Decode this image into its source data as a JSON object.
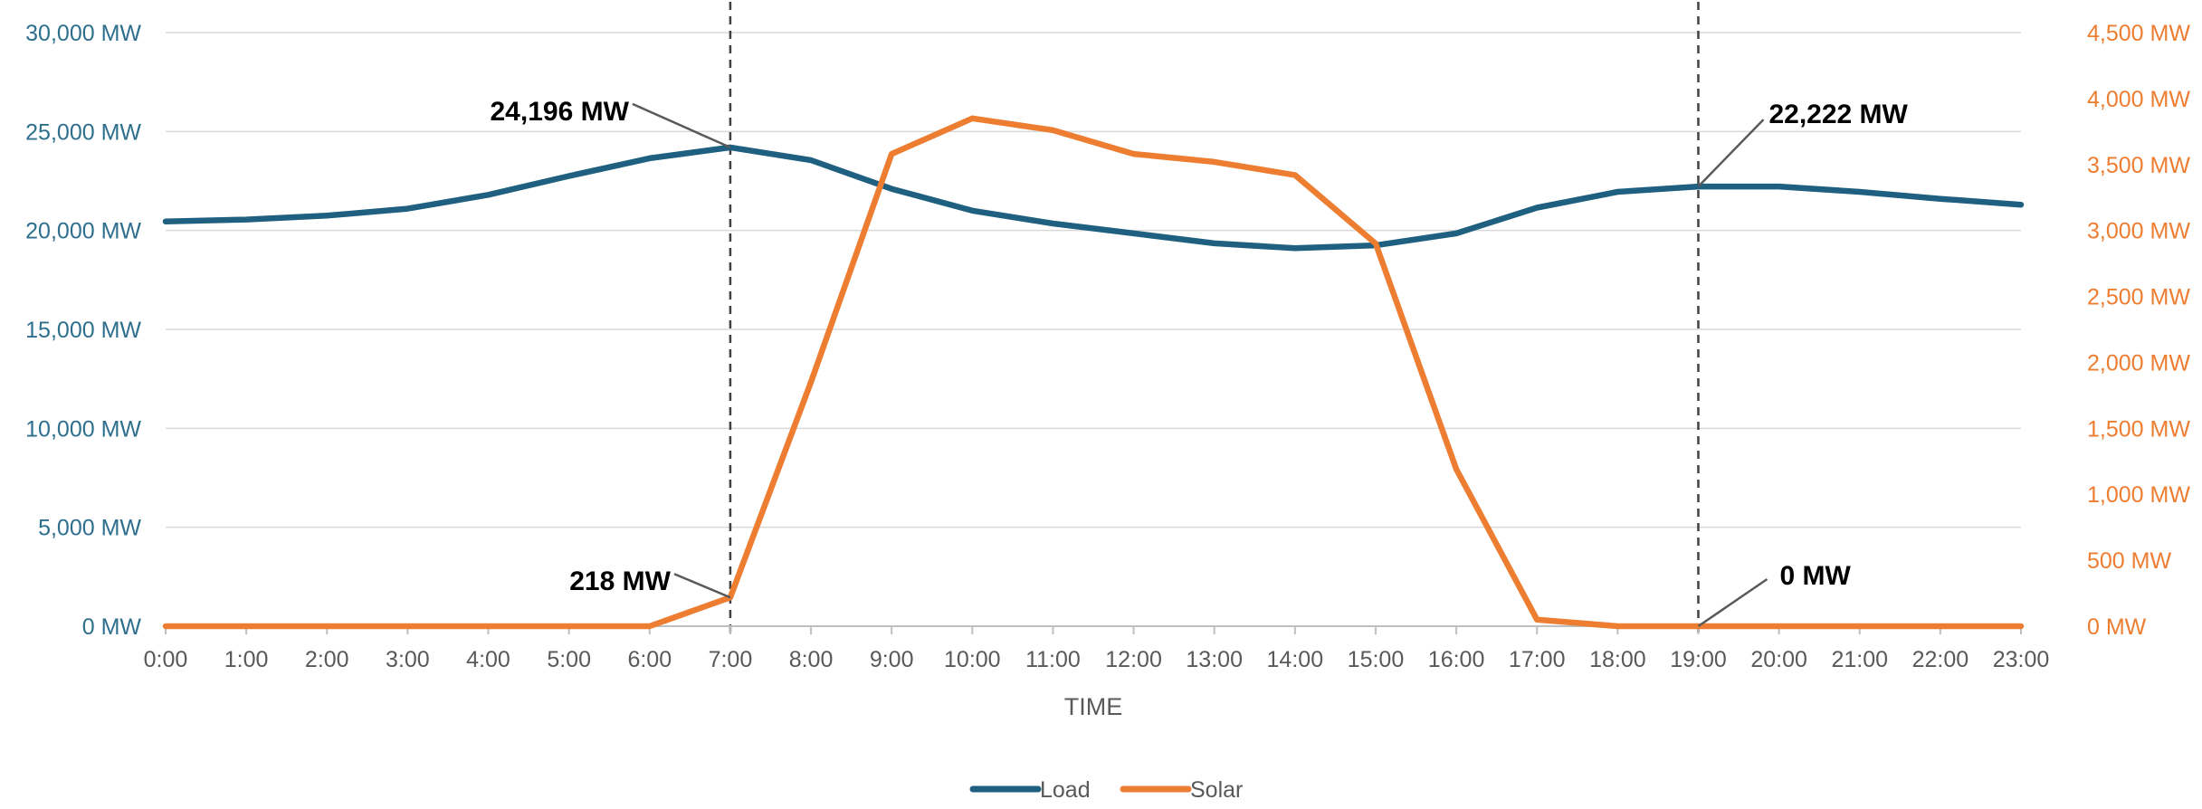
{
  "chart_data": {
    "type": "line",
    "title": "",
    "xlabel": "TIME",
    "categories": [
      "0:00",
      "1:00",
      "2:00",
      "3:00",
      "4:00",
      "5:00",
      "6:00",
      "7:00",
      "8:00",
      "9:00",
      "10:00",
      "11:00",
      "12:00",
      "13:00",
      "14:00",
      "15:00",
      "16:00",
      "17:00",
      "18:00",
      "19:00",
      "20:00",
      "21:00",
      "22:00",
      "23:00"
    ],
    "series": [
      {
        "name": "Load",
        "axis": "left",
        "color": "#1f5f7f",
        "values": [
          20450,
          20550,
          20750,
          21100,
          21800,
          22750,
          23650,
          24196,
          23550,
          22100,
          21000,
          20350,
          19850,
          19350,
          19100,
          19250,
          19850,
          21150,
          21950,
          22222,
          22222,
          21950,
          21600,
          21300
        ]
      },
      {
        "name": "Solar",
        "axis": "right",
        "color": "#ed7d31",
        "values": [
          0,
          0,
          0,
          0,
          0,
          0,
          0,
          218,
          1850,
          3580,
          3850,
          3760,
          3580,
          3520,
          3420,
          2900,
          1190,
          50,
          0,
          0,
          0,
          0,
          0,
          0
        ]
      }
    ],
    "y_left": {
      "lim": [
        0,
        30000
      ],
      "ticks": [
        0,
        5000,
        10000,
        15000,
        20000,
        25000,
        30000
      ],
      "tick_labels": [
        "0 MW",
        "5,000 MW",
        "10,000 MW",
        "15,000 MW",
        "20,000 MW",
        "25,000 MW",
        "30,000 MW"
      ],
      "color": "#2e6f8e"
    },
    "y_right": {
      "lim": [
        0,
        4500
      ],
      "ticks": [
        0,
        500,
        1000,
        1500,
        2000,
        2500,
        3000,
        3500,
        4000,
        4500
      ],
      "tick_labels": [
        "0 MW",
        "500 MW",
        "1,000 MW",
        "1,500 MW",
        "2,000 MW",
        "2,500 MW",
        "3,000 MW",
        "3,500 MW",
        "4,000 MW",
        "4,500 MW"
      ],
      "color": "#ed7d31"
    },
    "grid": true,
    "legend": "bottom-center",
    "vertical_markers": [
      "7:00",
      "19:00"
    ],
    "annotations": [
      {
        "text": "24,196 MW",
        "at": "7:00",
        "series": "Load"
      },
      {
        "text": "218 MW",
        "at": "7:00",
        "series": "Solar"
      },
      {
        "text": "22,222 MW",
        "at": "19:00",
        "series": "Load"
      },
      {
        "text": "0 MW",
        "at": "19:00",
        "series": "Solar"
      }
    ]
  }
}
